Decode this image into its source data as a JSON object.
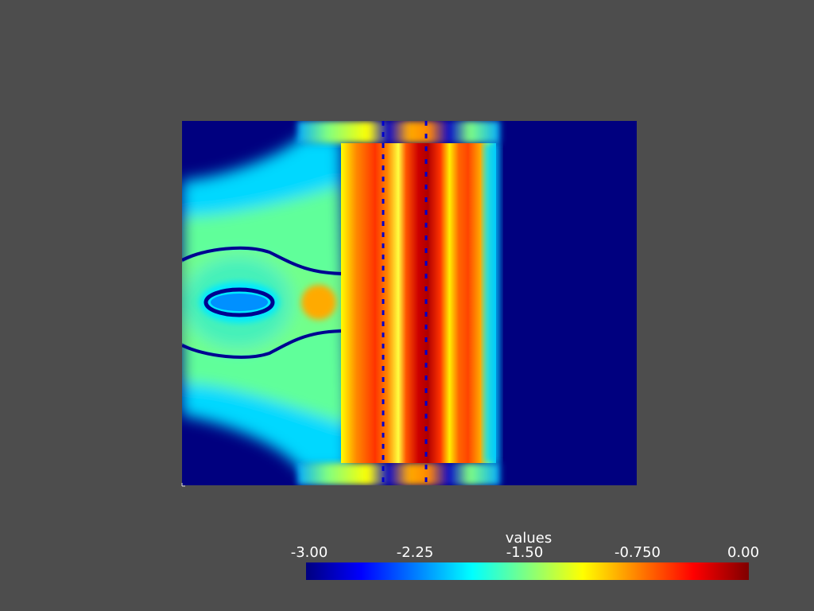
{
  "plot": {
    "colormap": "jet",
    "background_color": "#4d4d4d"
  },
  "colorbar": {
    "title": "values",
    "ticks": [
      {
        "value": -3.0,
        "label": "-3.00"
      },
      {
        "value": -2.25,
        "label": "-2.25"
      },
      {
        "value": -1.5,
        "label": "-1.50"
      },
      {
        "value": -0.75,
        "label": "-0.750"
      },
      {
        "value": 0.0,
        "label": "0.00"
      }
    ],
    "range": [
      -3.0,
      0.0
    ],
    "colors": {
      "min": "#00007f",
      "low": "#0000ff",
      "low_mid": "#0080ff",
      "cyan": "#00ffff",
      "mid": "#80ff80",
      "yellow": "#ffff00",
      "orange": "#ff8000",
      "red": "#ff0000",
      "max": "#7f0000"
    }
  }
}
